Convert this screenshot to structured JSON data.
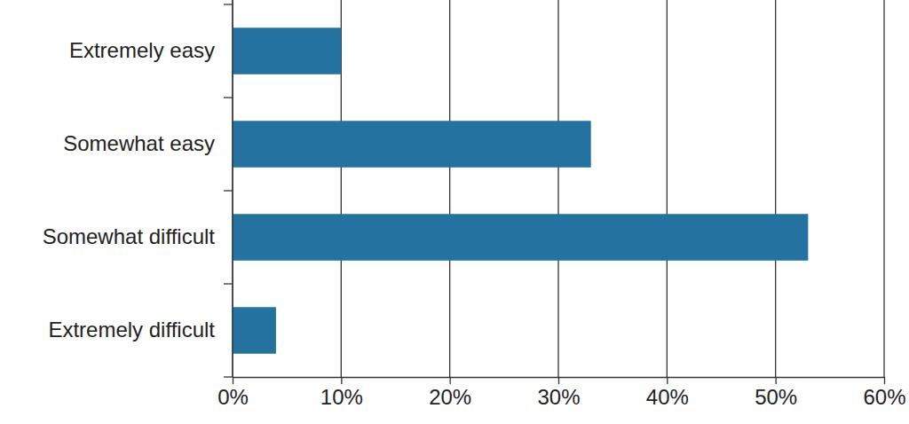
{
  "chart_data": {
    "type": "bar",
    "orientation": "horizontal",
    "categories": [
      "Extremely easy",
      "Somewhat easy",
      "Somewhat difficult",
      "Extremely difficult"
    ],
    "values": [
      10,
      33,
      53,
      4
    ],
    "color": "#24729f",
    "xlim": [
      0,
      60
    ],
    "xticks": [
      {
        "value": 0,
        "label": "0%"
      },
      {
        "value": 10,
        "label": "10%"
      },
      {
        "value": 20,
        "label": "20%"
      },
      {
        "value": 30,
        "label": "30%"
      },
      {
        "value": 40,
        "label": "40%"
      },
      {
        "value": 50,
        "label": "50%"
      },
      {
        "value": 60,
        "label": "60%"
      }
    ],
    "grid": true
  }
}
